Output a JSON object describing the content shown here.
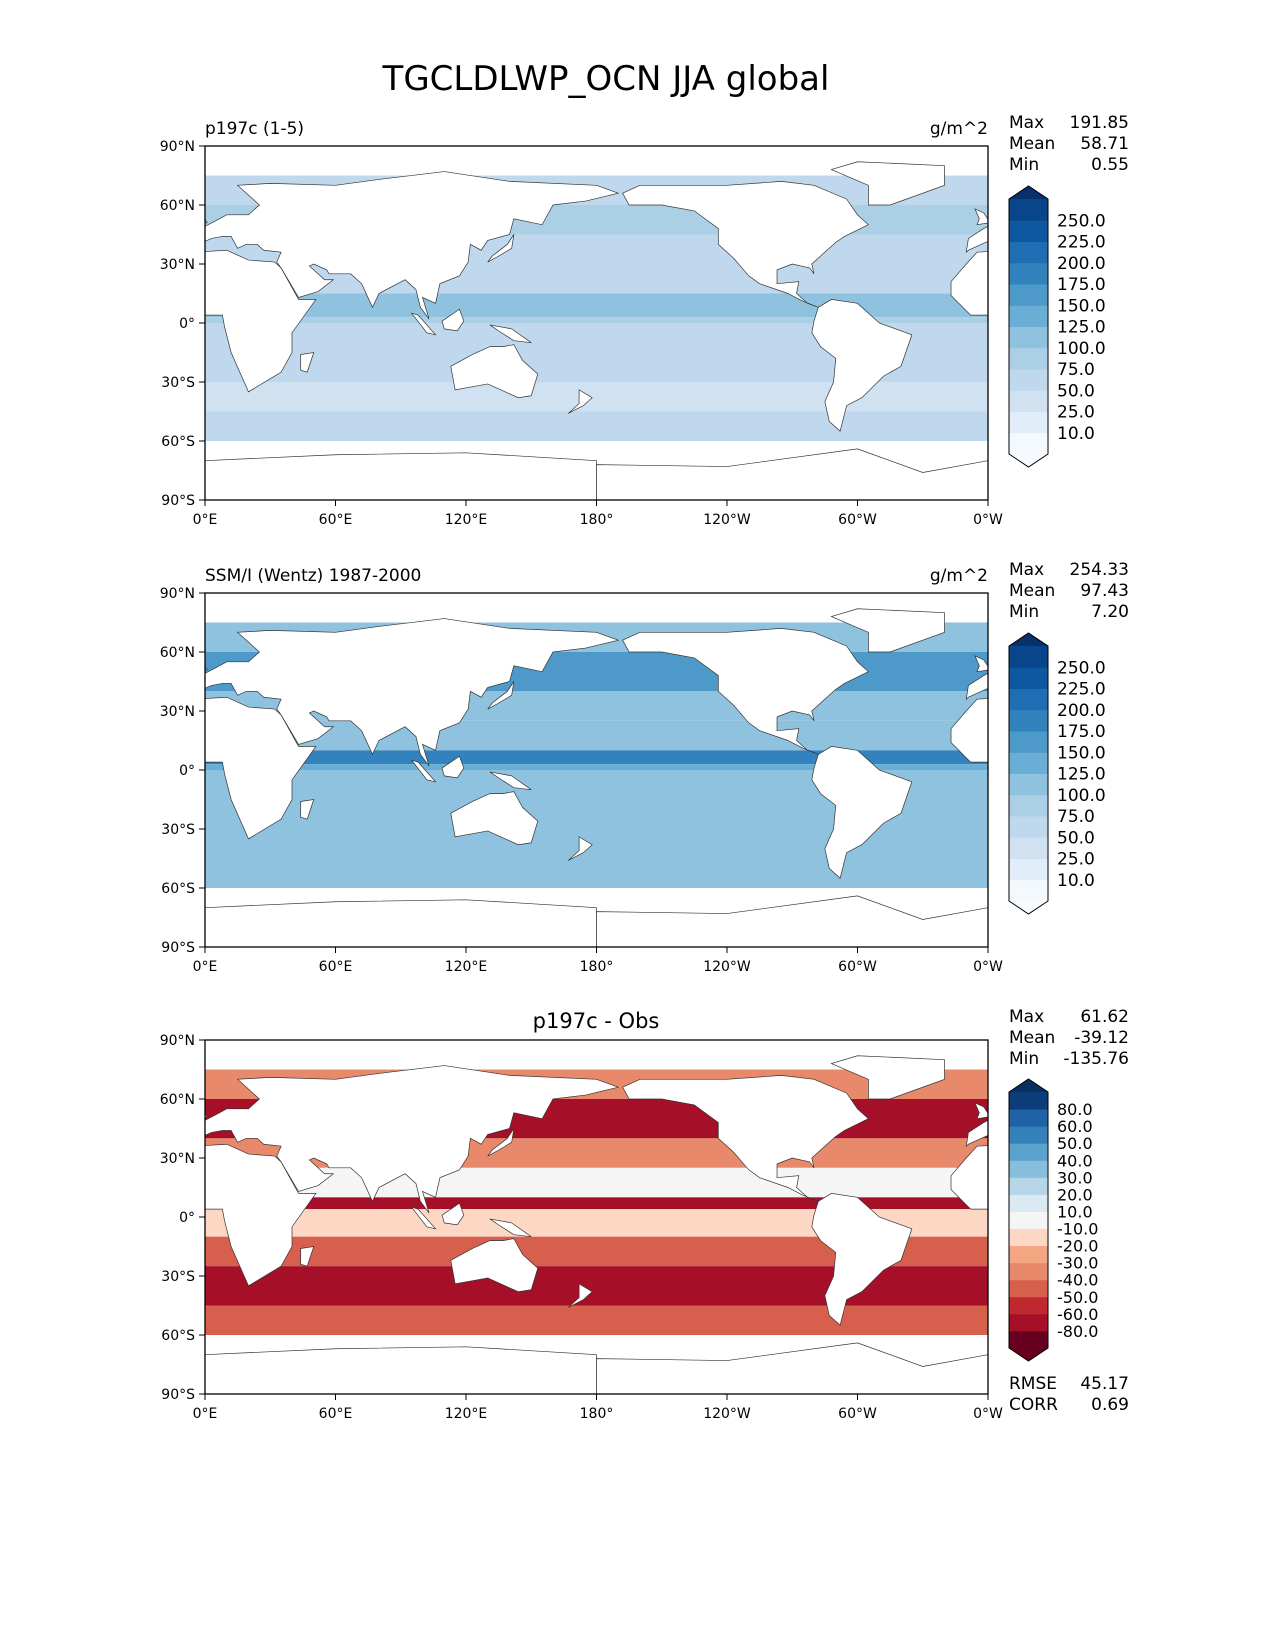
{
  "title": "TGCLDLWP_OCN JJA global",
  "x_ticks": [
    "0°E",
    "60°E",
    "120°E",
    "180°",
    "120°W",
    "60°W",
    "0°W"
  ],
  "y_ticks": [
    "90°N",
    "60°N",
    "30°N",
    "0°",
    "30°S",
    "60°S",
    "90°S"
  ],
  "chart_data": [
    {
      "type": "heatmap",
      "left_title": "p197c (1-5)",
      "center_title": "",
      "units": "g/m^2",
      "stats": [
        {
          "label": "Max",
          "value": "191.85"
        },
        {
          "label": "Mean",
          "value": "58.71"
        },
        {
          "label": "Min",
          "value": "0.55"
        }
      ],
      "colorbar": {
        "labels": [
          "250.0",
          "225.0",
          "200.0",
          "175.0",
          "150.0",
          "125.0",
          "100.0",
          "75.0",
          "50.0",
          "25.0",
          "10.0"
        ],
        "levels": [
          10,
          25,
          50,
          75,
          100,
          125,
          150,
          175,
          200,
          225,
          250
        ],
        "colors": [
          "#f7fbff",
          "#f4f9fe",
          "#e1edf8",
          "#d0e2f2",
          "#c0d8ed",
          "#abd0e6",
          "#8fc2de",
          "#6aaed6",
          "#4d99ca",
          "#3282be",
          "#1f6eb3",
          "#0d58a1",
          "#08458a",
          "#08306b"
        ]
      },
      "zonal_bands": [
        {
          "lat_from": 75,
          "lat_to": 60,
          "value": 60
        },
        {
          "lat_from": 60,
          "lat_to": 45,
          "value": 80
        },
        {
          "lat_from": 45,
          "lat_to": 30,
          "value": 55
        },
        {
          "lat_from": 30,
          "lat_to": 15,
          "value": 60
        },
        {
          "lat_from": 15,
          "lat_to": 3,
          "value": 110
        },
        {
          "lat_from": 3,
          "lat_to": 0,
          "value": 85
        },
        {
          "lat_from": 0,
          "lat_to": -15,
          "value": 70
        },
        {
          "lat_from": -15,
          "lat_to": -30,
          "value": 55
        },
        {
          "lat_from": -30,
          "lat_to": -45,
          "value": 48
        },
        {
          "lat_from": -45,
          "lat_to": -60,
          "value": 60
        }
      ]
    },
    {
      "type": "heatmap",
      "left_title": "SSM/I (Wentz) 1987-2000",
      "center_title": "",
      "units": "g/m^2",
      "stats": [
        {
          "label": "Max",
          "value": "254.33"
        },
        {
          "label": "Mean",
          "value": "97.43"
        },
        {
          "label": "Min",
          "value": "7.20"
        }
      ],
      "colorbar": {
        "labels": [
          "250.0",
          "225.0",
          "200.0",
          "175.0",
          "150.0",
          "125.0",
          "100.0",
          "75.0",
          "50.0",
          "25.0",
          "10.0"
        ],
        "levels": [
          10,
          25,
          50,
          75,
          100,
          125,
          150,
          175,
          200,
          225,
          250
        ],
        "colors": [
          "#f7fbff",
          "#f4f9fe",
          "#e1edf8",
          "#d0e2f2",
          "#c0d8ed",
          "#abd0e6",
          "#8fc2de",
          "#6aaed6",
          "#4d99ca",
          "#3282be",
          "#1f6eb3",
          "#0d58a1",
          "#08458a",
          "#08306b"
        ]
      },
      "zonal_bands": [
        {
          "lat_from": 75,
          "lat_to": 60,
          "value": 110
        },
        {
          "lat_from": 60,
          "lat_to": 40,
          "value": 160
        },
        {
          "lat_from": 40,
          "lat_to": 25,
          "value": 110
        },
        {
          "lat_from": 25,
          "lat_to": 10,
          "value": 100
        },
        {
          "lat_from": 10,
          "lat_to": 3,
          "value": 175
        },
        {
          "lat_from": 3,
          "lat_to": 0,
          "value": 130
        },
        {
          "lat_from": 0,
          "lat_to": -15,
          "value": 110
        },
        {
          "lat_from": -15,
          "lat_to": -30,
          "value": 105
        },
        {
          "lat_from": -30,
          "lat_to": -45,
          "value": 120
        },
        {
          "lat_from": -45,
          "lat_to": -60,
          "value": 110
        }
      ]
    },
    {
      "type": "heatmap",
      "left_title": "",
      "center_title": "p197c - Obs",
      "units": "",
      "stats": [
        {
          "label": "Max",
          "value": "61.62"
        },
        {
          "label": "Mean",
          "value": "-39.12"
        },
        {
          "label": "Min",
          "value": "-135.76"
        }
      ],
      "extra_stats": [
        {
          "label": "RMSE",
          "value": "45.17"
        },
        {
          "label": "CORR",
          "value": "0.69"
        }
      ],
      "colorbar": {
        "labels": [
          "80.0",
          "60.0",
          "50.0",
          "40.0",
          "30.0",
          "20.0",
          "10.0",
          "-10.0",
          "-20.0",
          "-30.0",
          "-40.0",
          "-50.0",
          "-60.0",
          "-80.0"
        ],
        "levels": [
          -80,
          -60,
          -50,
          -40,
          -30,
          -20,
          -10,
          10,
          20,
          30,
          40,
          50,
          60,
          80
        ],
        "colors": [
          "#67001f",
          "#67001f",
          "#a50f27",
          "#c0282f",
          "#d6604d",
          "#e8896c",
          "#f4a582",
          "#fbd7c4",
          "#f5f5f5",
          "#dbeaf2",
          "#b6d6e8",
          "#87bedc",
          "#5aa1cc",
          "#3480b9",
          "#1f62a5",
          "#0c3d78",
          "#053061"
        ]
      },
      "zonal_bands": [
        {
          "lat_from": 75,
          "lat_to": 60,
          "value": -35
        },
        {
          "lat_from": 60,
          "lat_to": 40,
          "value": -75
        },
        {
          "lat_from": 40,
          "lat_to": 25,
          "value": -40
        },
        {
          "lat_from": 25,
          "lat_to": 10,
          "value": -5
        },
        {
          "lat_from": 10,
          "lat_to": 4,
          "value": -65
        },
        {
          "lat_from": 4,
          "lat_to": -10,
          "value": -15
        },
        {
          "lat_from": -10,
          "lat_to": -25,
          "value": -45
        },
        {
          "lat_from": -25,
          "lat_to": -45,
          "value": -65
        },
        {
          "lat_from": -45,
          "lat_to": -60,
          "value": -50
        }
      ]
    }
  ]
}
